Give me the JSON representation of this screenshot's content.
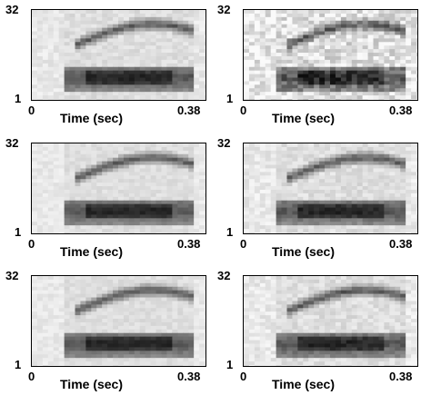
{
  "axes": {
    "y_top": "32",
    "y_bottom": "1",
    "x_left": "0",
    "x_right": "0.38",
    "x_label": "Time (sec)"
  },
  "panels": [
    {
      "name": "panel-1",
      "noise": 0.1
    },
    {
      "name": "panel-2",
      "noise": 0.28
    },
    {
      "name": "panel-3",
      "noise": 0.08
    },
    {
      "name": "panel-4",
      "noise": 0.12
    },
    {
      "name": "panel-5",
      "noise": 0.08
    },
    {
      "name": "panel-6",
      "noise": 0.12
    }
  ],
  "colors": {
    "background": "#e8e8e8",
    "dark": "#111111"
  }
}
